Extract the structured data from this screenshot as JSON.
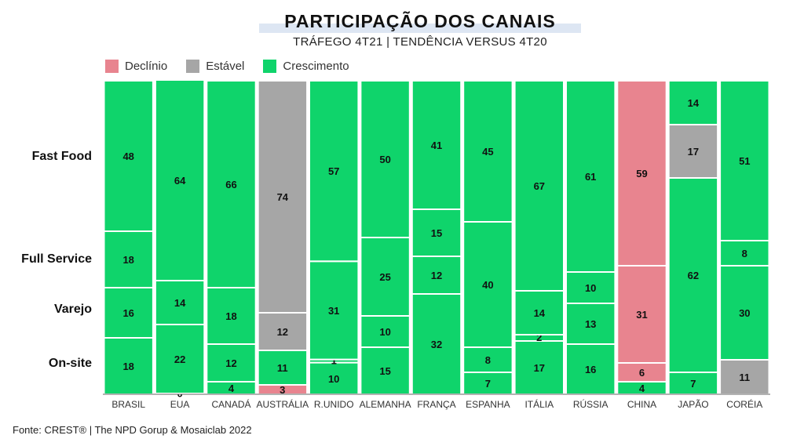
{
  "header": {
    "title": "PARTICIPAÇÃO DOS CANAIS",
    "subtitle": "TRÁFEGO 4T21  |  TENDÊNCIA VERSUS 4T20"
  },
  "legend": [
    {
      "label": "Declínio",
      "color": "#e8848f"
    },
    {
      "label": "Estável",
      "color": "#a6a6a6"
    },
    {
      "label": "Crescimento",
      "color": "#0fd46b"
    }
  ],
  "row_labels": {
    "fast_food": "Fast Food",
    "full_service": "Full Service",
    "varejo": "Varejo",
    "on_site": "On-site"
  },
  "source": "Fonte: CREST® | The NPD Gorup &  Mosaiclab 2022",
  "chart_data": {
    "type": "bar",
    "stacked": true,
    "percent_stacked": true,
    "categories": [
      "BRASIL",
      "EUA",
      "CANADÁ",
      "AUSTRÁLIA",
      "R.UNIDO",
      "ALEMANHA",
      "FRANÇA",
      "ESPANHA",
      "ITÁLIA",
      "RÚSSIA",
      "CHINA",
      "JAPÃO",
      "CORÉIA"
    ],
    "trend_colors": {
      "declinio": "#e8848f",
      "estavel": "#a6a6a6",
      "crescimento": "#0fd46b"
    },
    "series": [
      {
        "name": "On-site",
        "values": [
          18,
          0,
          4,
          3,
          10,
          15,
          32,
          7,
          17,
          16,
          4,
          7,
          11
        ],
        "trend": [
          "crescimento",
          "crescimento",
          "crescimento",
          "declinio",
          "crescimento",
          "crescimento",
          "crescimento",
          "crescimento",
          "crescimento",
          "crescimento",
          "crescimento",
          "crescimento",
          "estavel"
        ]
      },
      {
        "name": "Varejo",
        "values": [
          16,
          22,
          12,
          11,
          1,
          10,
          12,
          8,
          2,
          13,
          6,
          62,
          30
        ],
        "trend": [
          "crescimento",
          "crescimento",
          "crescimento",
          "crescimento",
          "crescimento",
          "crescimento",
          "crescimento",
          "crescimento",
          "crescimento",
          "crescimento",
          "declinio",
          "crescimento",
          "crescimento"
        ]
      },
      {
        "name": "Full Service",
        "values": [
          18,
          14,
          18,
          12,
          31,
          25,
          15,
          40,
          14,
          10,
          31,
          17,
          8
        ],
        "trend": [
          "crescimento",
          "crescimento",
          "crescimento",
          "estavel",
          "crescimento",
          "crescimento",
          "crescimento",
          "crescimento",
          "crescimento",
          "crescimento",
          "declinio",
          "estavel",
          "crescimento"
        ]
      },
      {
        "name": "Fast Food",
        "values": [
          48,
          64,
          66,
          74,
          57,
          50,
          41,
          45,
          67,
          61,
          59,
          14,
          51
        ],
        "trend": [
          "crescimento",
          "crescimento",
          "crescimento",
          "estavel",
          "crescimento",
          "crescimento",
          "crescimento",
          "crescimento",
          "crescimento",
          "crescimento",
          "declinio",
          "crescimento",
          "crescimento"
        ]
      }
    ],
    "ylim": [
      0,
      100
    ]
  }
}
